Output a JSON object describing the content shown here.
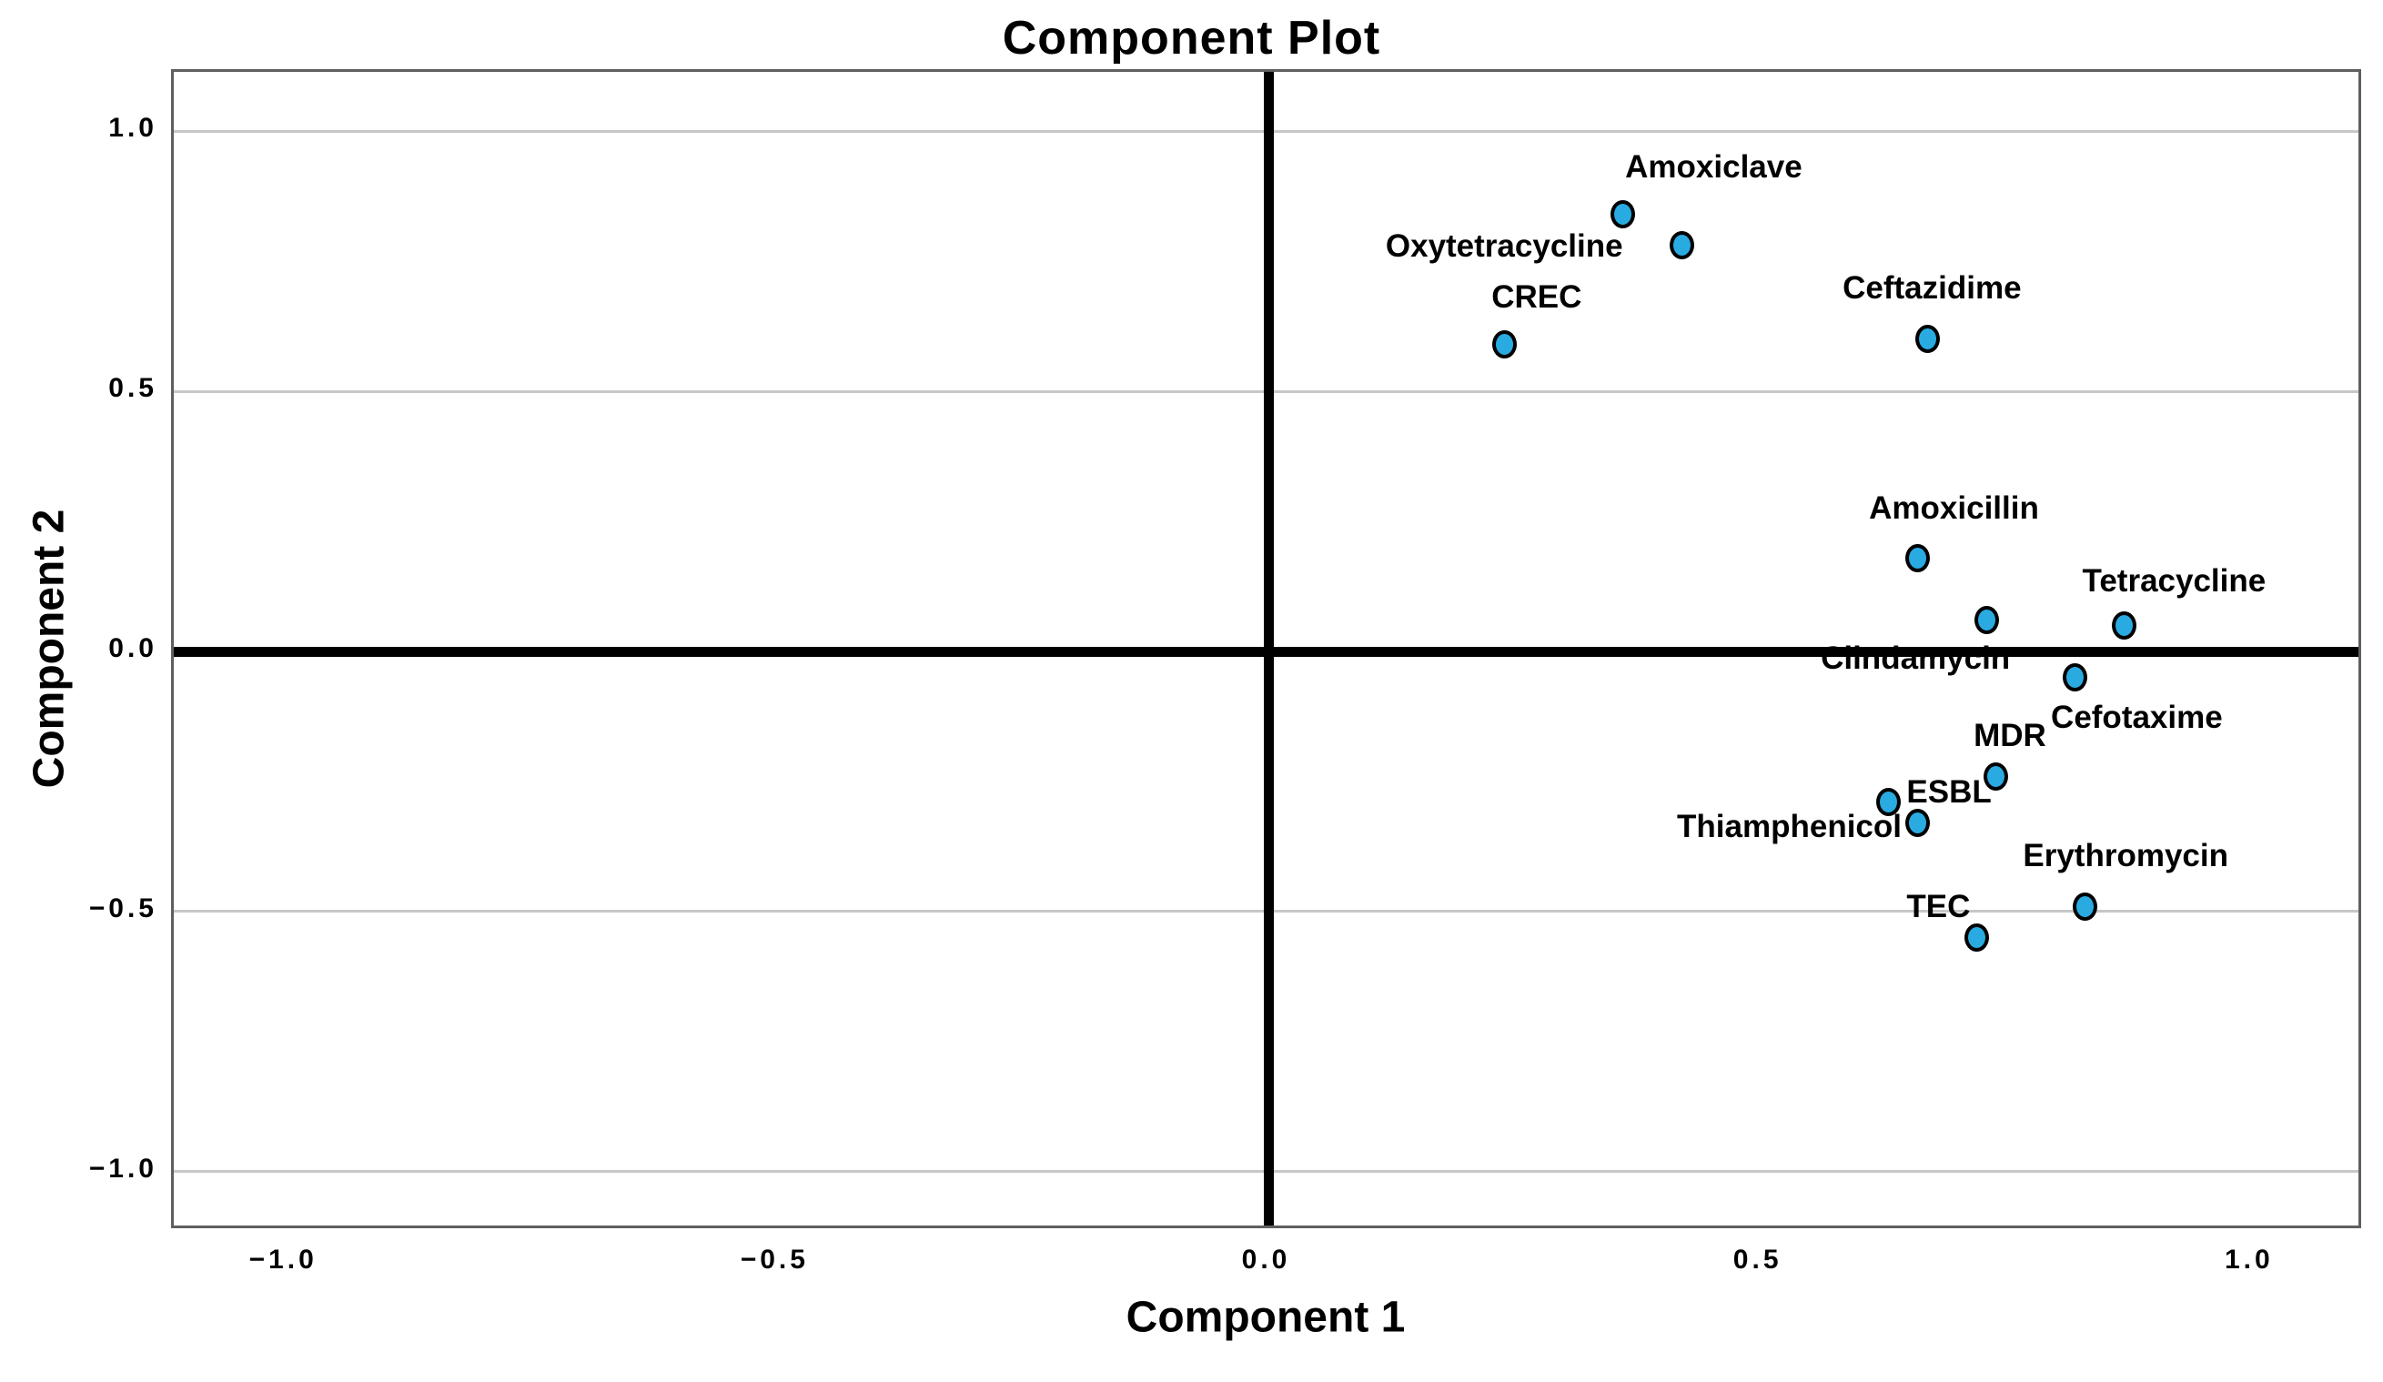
{
  "page": {
    "background": "#ffffff"
  },
  "colors": {
    "marker_fill": "#29ABE2",
    "marker_stroke": "#000000",
    "gridline": "#c7c7c7",
    "axis_frame": "#5f5f5f",
    "zero_line": "#000000",
    "text": "#000000"
  },
  "chart_data": {
    "type": "scatter",
    "title": "Component Plot",
    "xlabel": "Component 1",
    "ylabel": "Component 2",
    "xlim": [
      -1.114,
      1.114
    ],
    "ylim": [
      -1.114,
      1.114
    ],
    "grid": "horizontal-only",
    "legend": null,
    "x_ticks": [
      {
        "value": -1.0,
        "label": "−1.0"
      },
      {
        "value": -0.5,
        "label": "−0.5"
      },
      {
        "value": 0.0,
        "label": "0.0"
      },
      {
        "value": 0.5,
        "label": "0.5"
      },
      {
        "value": 1.0,
        "label": "1.0"
      }
    ],
    "y_ticks": [
      {
        "value": 1.0,
        "label": "1.0"
      },
      {
        "value": 0.5,
        "label": "0.5"
      },
      {
        "value": 0.0,
        "label": "0.0"
      },
      {
        "value": -0.5,
        "label": "−0.5"
      },
      {
        "value": -1.0,
        "label": "−1.0"
      }
    ],
    "gridline_values": [
      1.0,
      0.5,
      -0.5,
      -1.0
    ],
    "zero_reference_lines": [
      "x",
      "y"
    ],
    "points": [
      {
        "label": "Amoxiclave",
        "x": 0.36,
        "y": 0.84,
        "label_offset": [
          100,
          -52
        ]
      },
      {
        "label": "Oxytetracycline",
        "x": 0.42,
        "y": 0.78,
        "label_offset": [
          -195,
          1
        ]
      },
      {
        "label": "CREC",
        "x": 0.24,
        "y": 0.59,
        "label_offset": [
          35,
          -52
        ]
      },
      {
        "label": "Ceftazidime",
        "x": 0.67,
        "y": 0.6,
        "label_offset": [
          5,
          -56
        ]
      },
      {
        "label": "Amoxicillin",
        "x": 0.66,
        "y": 0.18,
        "label_offset": [
          40,
          -54
        ]
      },
      {
        "label": "Clindamycin",
        "x": 0.73,
        "y": 0.06,
        "label_offset": [
          -78,
          42
        ]
      },
      {
        "label": "Tetracycline",
        "x": 0.87,
        "y": 0.05,
        "label_offset": [
          55,
          -48
        ]
      },
      {
        "label": "Cefotaxime",
        "x": 0.82,
        "y": -0.05,
        "label_offset": [
          68,
          44
        ]
      },
      {
        "label": "MDR",
        "x": 0.74,
        "y": -0.24,
        "label_offset": [
          15,
          -44
        ]
      },
      {
        "label": "ESBL",
        "x": 0.63,
        "y": -0.29,
        "label_offset": [
          67,
          -11
        ]
      },
      {
        "label": "Thiamphenicol",
        "x": 0.66,
        "y": -0.33,
        "label_offset": [
          -141,
          4
        ]
      },
      {
        "label": "Erythromycin",
        "x": 0.83,
        "y": -0.49,
        "label_offset": [
          45,
          -55
        ]
      },
      {
        "label": "TEC",
        "x": 0.72,
        "y": -0.55,
        "label_offset": [
          -42,
          -33
        ]
      }
    ]
  }
}
